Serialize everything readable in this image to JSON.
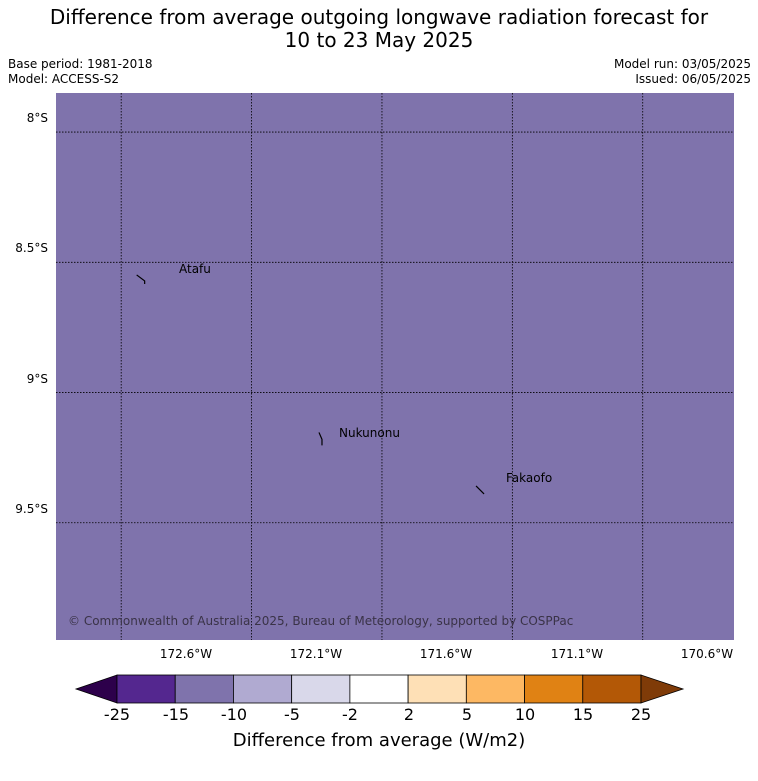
{
  "header": {
    "title_line1": "Difference from average outgoing longwave radiation forecast for",
    "title_line2": "10 to 23 May 2025",
    "base_period": "Base period: 1981-2018",
    "model": "Model: ACCESS-S2",
    "model_run": "Model run: 03/05/2025",
    "issued": "Issued: 06/05/2025"
  },
  "map": {
    "fill_color": "#7f73ac",
    "extent": {
      "lon_min": -172.85,
      "lon_max": -170.25,
      "lat_min": -9.95,
      "lat_max": -7.85
    },
    "lat_labels": [
      "8°S",
      "8.5°S",
      "9°S",
      "9.5°S"
    ],
    "lon_labels": [
      "172.6°W",
      "172.1°W",
      "171.6°W",
      "171.1°W",
      "170.6°W"
    ],
    "places": [
      {
        "name": "Atafu",
        "lon": -172.51,
        "lat": -8.56
      },
      {
        "name": "Nukunonu",
        "lon": -171.83,
        "lat": -9.18
      },
      {
        "name": "Fakaofo",
        "lon": -171.22,
        "lat": -9.37
      }
    ],
    "copyright": "© Commonwealth of Australia 2025, Bureau of Meteorology, supported by COSPPac"
  },
  "colorbar": {
    "ticks": [
      "-25",
      "-15",
      "-10",
      "-5",
      "-2",
      "2",
      "5",
      "10",
      "15",
      "25"
    ],
    "colors": [
      "#54278f",
      "#7f73ac",
      "#b0aad1",
      "#d9d8ea",
      "#ffffff",
      "#fee0b6",
      "#fdb863",
      "#e08214",
      "#b35806"
    ],
    "extend_low_color": "#2d004b",
    "extend_high_color": "#7f3b08",
    "label": "Difference from average (W/m2)"
  }
}
